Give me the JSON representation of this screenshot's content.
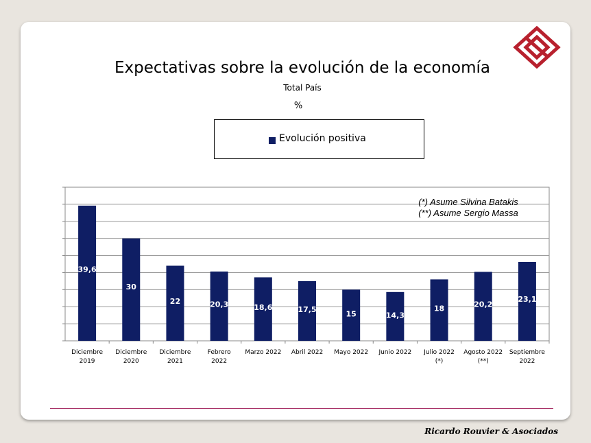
{
  "footer": {
    "company": "Ricardo Rouvier & Asociados"
  },
  "brand": {
    "logo_icon": "diamond-logo-icon",
    "logo_color": "#b8212e"
  },
  "chart_data": {
    "type": "bar",
    "title": "Expectativas sobre la evolución de la economía",
    "subtitle": "Total País",
    "unit": "%",
    "categories": [
      [
        "Diciembre",
        "2019"
      ],
      [
        "Diciembre",
        "2020"
      ],
      [
        "Diciembre",
        "2021"
      ],
      [
        "Febrero",
        "2022"
      ],
      [
        "Marzo 2022"
      ],
      [
        "Abril 2022"
      ],
      [
        "Mayo 2022"
      ],
      [
        "Junio 2022"
      ],
      [
        "Julio 2022",
        "(*)"
      ],
      [
        "Agosto 2022",
        "(**)"
      ],
      [
        "Septiembre",
        "2022"
      ]
    ],
    "series": [
      {
        "name": "Evolución positiva",
        "color": "#0f1e64",
        "values": [
          39.6,
          30,
          22,
          20.3,
          18.6,
          17.5,
          15,
          14.3,
          18,
          20.2,
          23.1
        ],
        "labels": [
          "39,6",
          "30",
          "22",
          "20,3",
          "18,6",
          "17,5",
          "15",
          "14,3",
          "18",
          "20,2",
          "23,1"
        ]
      }
    ],
    "ylim": [
      0,
      45
    ],
    "grid": true,
    "legend_position": "top",
    "annotations": [
      "(*) Asume Silvina Batakis",
      "(**) Asume Sergio Massa"
    ]
  }
}
